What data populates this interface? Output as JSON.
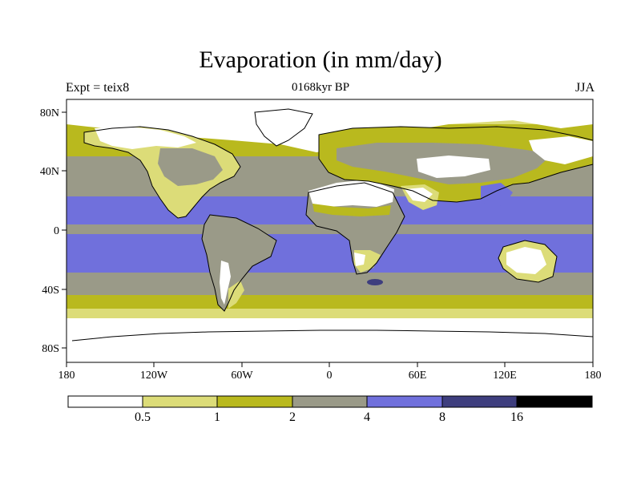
{
  "title": "Evaporation (in mm/day)",
  "subtitle": "0168kyr BP",
  "left_note": "Expt = teix8",
  "right_note": "JJA",
  "colors": {
    "level0": "#ffffff",
    "level1": "#dcdc78",
    "level2": "#b9b91e",
    "level3": "#9a9a88",
    "level4": "#7070dc",
    "level5": "#3e3e7e",
    "level6": "#000000",
    "ocean_base": "#9a9a88",
    "coast": "#000000"
  },
  "map": {
    "lat_labels": [
      "80N",
      "40N",
      "0",
      "40S",
      "80S"
    ],
    "lon_labels": [
      "180",
      "120W",
      "60W",
      "0",
      "60E",
      "120E",
      "180"
    ]
  },
  "colorbar": {
    "labels": [
      "0.5",
      "1",
      "2",
      "4",
      "8",
      "16"
    ]
  }
}
